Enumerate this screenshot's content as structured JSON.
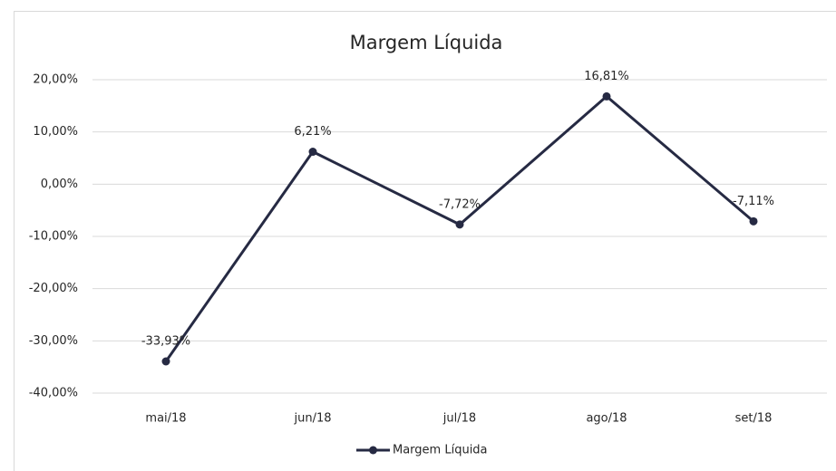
{
  "chart_data": {
    "type": "line",
    "title": "Margem Líquida",
    "categories": [
      "mai/18",
      "jun/18",
      "jul/18",
      "ago/18",
      "set/18"
    ],
    "series": [
      {
        "name": "Margem Líquida",
        "color": "#262a43",
        "values": [
          -33.93,
          6.21,
          -7.72,
          16.81,
          -7.11
        ],
        "value_labels": [
          "-33,93%",
          "6,21%",
          "-7,72%",
          "16,81%",
          "-7,11%"
        ]
      }
    ],
    "ylim": [
      -40,
      20
    ],
    "yticks": [
      {
        "value": -40,
        "label": "-40,00%"
      },
      {
        "value": -30,
        "label": "-30,00%"
      },
      {
        "value": -20,
        "label": "-20,00%"
      },
      {
        "value": -10,
        "label": "-10,00%"
      },
      {
        "value": 0,
        "label": "0,00%"
      },
      {
        "value": 10,
        "label": "10,00%"
      },
      {
        "value": 20,
        "label": "20,00%"
      }
    ],
    "grid": true,
    "legend": "bottom"
  }
}
